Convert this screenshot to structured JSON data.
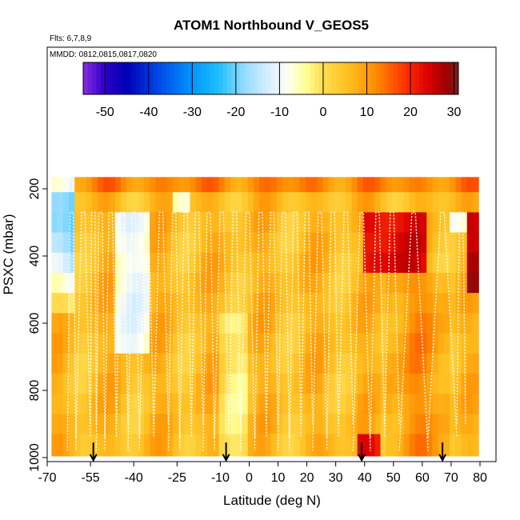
{
  "chart_data": {
    "type": "heatmap",
    "title": "ATOM1 Northbound V_GEOS5",
    "subtitle_flights": "Flts: 6,7,8,9",
    "subtitle_dates": "MMDD: 0812,0815,0817,0820",
    "xlabel": "Latitude (deg N)",
    "ylabel": "PSXC (mbar)",
    "xlim": [
      -70,
      85
    ],
    "ylim": [
      1000,
      140
    ],
    "x_ticks": [
      -70,
      -55,
      -40,
      -25,
      -10,
      0,
      10,
      20,
      30,
      40,
      50,
      60,
      70,
      80
    ],
    "x_tick_labels": [
      "-70",
      "-55",
      "-40",
      "-25",
      "-10",
      "0",
      "10",
      "20",
      "30",
      "40",
      "50",
      "60",
      "70",
      "80"
    ],
    "y_ticks": [
      200,
      400,
      600,
      800,
      1000
    ],
    "y_tick_labels": [
      "200",
      "400",
      "600",
      "800",
      "1000"
    ],
    "colorbar": {
      "min": -55,
      "max": 31,
      "ticks": [
        -50,
        -40,
        -30,
        -20,
        -10,
        0,
        10,
        20,
        30
      ],
      "tick_labels": [
        "-50",
        "-40",
        "-30",
        "-20",
        "-10",
        "0",
        "10",
        "20",
        "30"
      ],
      "stops": [
        {
          "v": -55,
          "c": "#8a2be2"
        },
        {
          "v": -50,
          "c": "#2a00c8"
        },
        {
          "v": -45,
          "c": "#0000b4"
        },
        {
          "v": -38,
          "c": "#0046e6"
        },
        {
          "v": -30,
          "c": "#0096ff"
        },
        {
          "v": -24,
          "c": "#1ebeff"
        },
        {
          "v": -18,
          "c": "#96dcff"
        },
        {
          "v": -12,
          "c": "#dcf0ff"
        },
        {
          "v": -8,
          "c": "#fffff0"
        },
        {
          "v": -4,
          "c": "#ffff96"
        },
        {
          "v": 0,
          "c": "#ffdc50"
        },
        {
          "v": 6,
          "c": "#ffbe1e"
        },
        {
          "v": 12,
          "c": "#ff8c00"
        },
        {
          "v": 18,
          "c": "#ff3c00"
        },
        {
          "v": 24,
          "c": "#dc0000"
        },
        {
          "v": 28,
          "c": "#a00000"
        },
        {
          "v": 31,
          "c": "#781e1e"
        }
      ]
    },
    "lat_bins": [
      -68,
      -66,
      -64,
      -62,
      -60,
      -58,
      -56,
      -54,
      -52,
      -50,
      -48,
      -46,
      -44,
      -42,
      -40,
      -38,
      -36,
      -34,
      -32,
      -30,
      -28,
      -26,
      -24,
      -22,
      -20,
      -18,
      -16,
      -14,
      -12,
      -10,
      -8,
      -6,
      -4,
      -2,
      0,
      2,
      4,
      6,
      8,
      10,
      12,
      14,
      16,
      18,
      20,
      22,
      24,
      26,
      28,
      30,
      32,
      34,
      36,
      38,
      40,
      42,
      44,
      46,
      48,
      50,
      52,
      54,
      56,
      58,
      60,
      62,
      64,
      66,
      68,
      70,
      72,
      74,
      76,
      78
    ],
    "pressure_levels": [
      180,
      240,
      300,
      360,
      420,
      480,
      540,
      600,
      660,
      720,
      780,
      840,
      900,
      960
    ],
    "profile_latitudes": [
      -63,
      -60,
      -55,
      -53,
      -50,
      -46,
      -42,
      -38,
      -33,
      -28,
      -24,
      -20,
      -16,
      -12,
      -7,
      -3,
      2,
      6,
      10,
      14,
      18,
      22,
      27,
      31,
      36,
      42,
      47,
      52,
      62,
      72,
      75
    ],
    "markers_lat": [
      -54,
      -8,
      39,
      67
    ]
  }
}
